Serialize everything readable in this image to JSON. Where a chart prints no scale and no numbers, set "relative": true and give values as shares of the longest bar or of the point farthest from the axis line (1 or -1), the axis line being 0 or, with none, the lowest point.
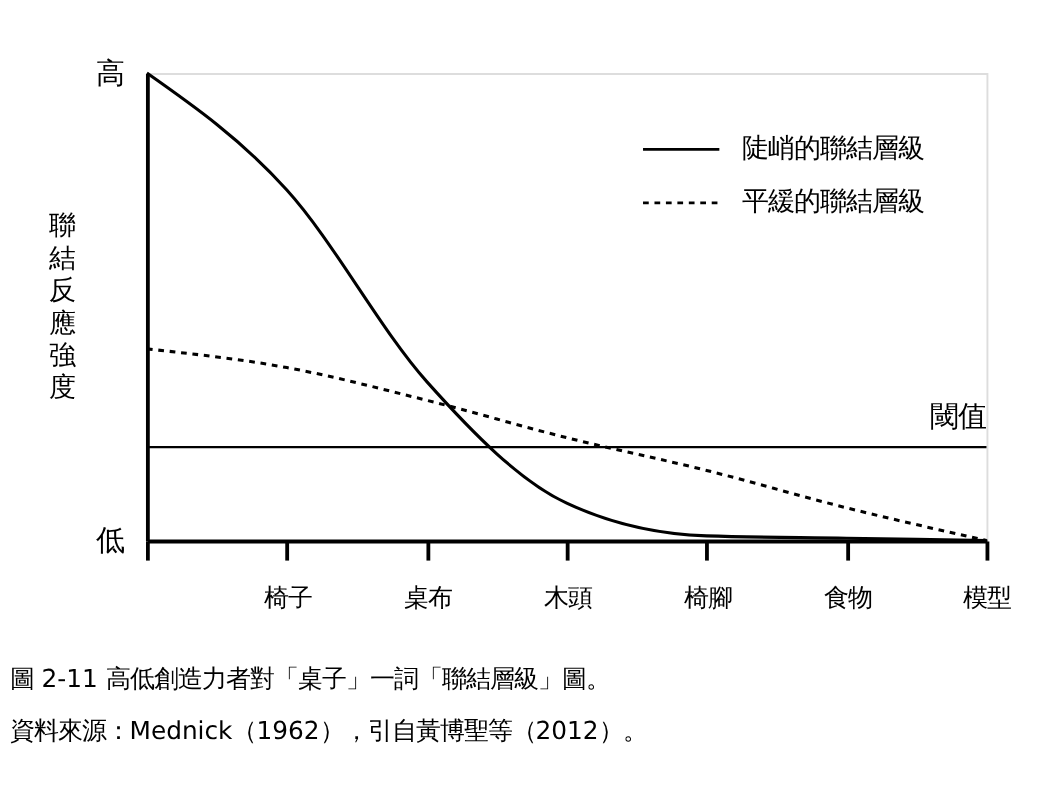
{
  "chart_data": {
    "type": "line",
    "ylabel": "聯結反應強度",
    "relative": true,
    "categories": [
      null,
      "椅子",
      "桌布",
      "木頭",
      "椅腳",
      "食物",
      "模型"
    ],
    "series": [
      {
        "name": "陡峭的聯結層級",
        "color": "#000000",
        "line_style": "solid",
        "values": [
          1,
          0.75,
          0.34,
          0.08,
          0.01,
          0.005,
          0
        ]
      },
      {
        "name": "平緩的聯結層級",
        "color": "#000000",
        "line_style": "dotted",
        "values": [
          0.41,
          0.37,
          0.3,
          0.22,
          0.15,
          0.07,
          0
        ]
      }
    ],
    "ref_lines": [
      {
        "axis": "y",
        "value": 0.2,
        "label": "閾值",
        "color": "#000000"
      }
    ],
    "legend": "top right",
    "grid": false,
    "marker": "none",
    "annotations": [
      "高",
      "低",
      "圖 2-11 高低創造力者對「桌子」一詞「聯結層級」圖。",
      "資料來源：Mednick（1962），引自黃博聖等（2012）。"
    ]
  }
}
